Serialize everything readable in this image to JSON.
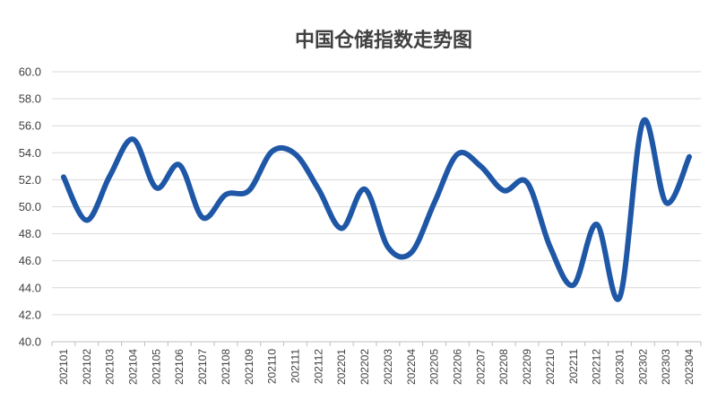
{
  "chart_data": {
    "type": "line",
    "title": "中国仓储指数走势图",
    "xlabel": "",
    "ylabel": "",
    "ylim": [
      40,
      60
    ],
    "ytick_step": 2,
    "ytick_labels": [
      "40.0",
      "42.0",
      "44.0",
      "46.0",
      "48.0",
      "50.0",
      "52.0",
      "54.0",
      "56.0",
      "58.0",
      "60.0"
    ],
    "grid": true,
    "legend": "none",
    "line_color": "#1f57a7",
    "categories": [
      "202101",
      "202102",
      "202103",
      "202104",
      "202105",
      "202106",
      "202107",
      "202108",
      "202109",
      "202110",
      "202111",
      "202112",
      "202201",
      "202202",
      "202203",
      "202204",
      "202205",
      "202206",
      "202207",
      "202208",
      "202209",
      "202210",
      "202211",
      "202212",
      "202301",
      "202302",
      "202303",
      "202304"
    ],
    "series": [
      {
        "name": "",
        "values": [
          52.2,
          49.0,
          52.3,
          55.0,
          51.4,
          53.1,
          49.2,
          50.9,
          51.2,
          54.1,
          53.9,
          51.3,
          48.4,
          51.3,
          47.0,
          46.6,
          50.3,
          53.9,
          53.0,
          51.2,
          51.8,
          47.0,
          44.2,
          48.7,
          43.3,
          56.3,
          50.3,
          53.7
        ]
      }
    ]
  }
}
